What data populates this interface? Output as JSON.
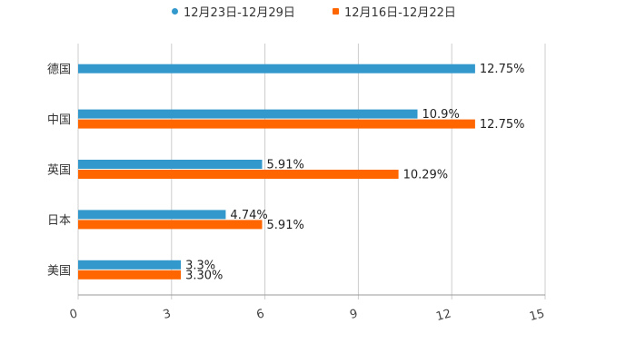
{
  "legend": [
    {
      "name": "12月23日-12月29日",
      "color": "#3399cc",
      "marker": "circle"
    },
    {
      "name": "12月16日-12月22日",
      "color": "#ff6600",
      "marker": "square"
    }
  ],
  "chart_data": {
    "type": "bar",
    "orientation": "horizontal",
    "categories": [
      "德国",
      "中国",
      "英国",
      "日本",
      "美国"
    ],
    "series": [
      {
        "name": "12月23日-12月29日",
        "color": "#3399cc",
        "values": [
          12.75,
          10.9,
          5.91,
          4.74,
          3.3
        ],
        "labels": [
          "12.75%",
          "10.9%",
          "5.91%",
          "4.74%",
          "3.3%"
        ]
      },
      {
        "name": "12月16日-12月22日",
        "color": "#ff6600",
        "values": [
          null,
          12.75,
          10.29,
          5.91,
          3.3
        ],
        "labels": [
          null,
          "12.75%",
          "10.29%",
          "5.91%",
          "3.30%"
        ]
      }
    ],
    "xlim": [
      0,
      15
    ],
    "xticks": [
      0,
      3,
      6,
      9,
      12,
      15
    ],
    "grid": true,
    "legend_position": "top-center",
    "title": "",
    "xlabel": "",
    "ylabel": ""
  }
}
